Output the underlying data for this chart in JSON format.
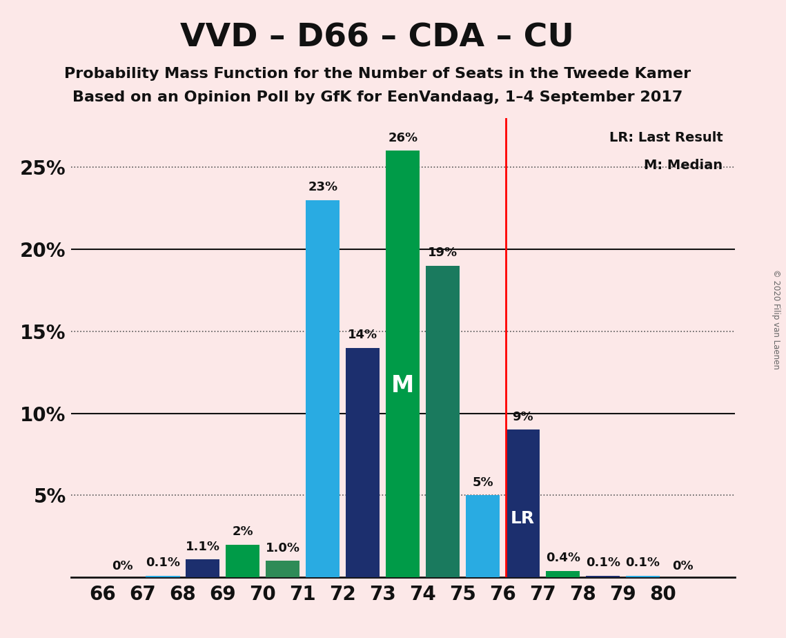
{
  "title": "VVD – D66 – CDA – CU",
  "subtitle1": "Probability Mass Function for the Number of Seats in the Tweede Kamer",
  "subtitle2": "Based on an Opinion Poll by GfK for EenVandaag, 1–4 September 2017",
  "copyright": "© 2020 Filip van Laenen",
  "background_color": "#fce8e8",
  "seats": [
    66,
    67,
    68,
    69,
    70,
    71,
    72,
    73,
    74,
    75,
    76,
    77,
    78,
    79,
    80
  ],
  "probabilities": [
    0.0,
    0.1,
    1.1,
    2.0,
    1.0,
    23.0,
    14.0,
    26.0,
    19.0,
    5.0,
    9.0,
    0.4,
    0.1,
    0.1,
    0.0
  ],
  "bar_colors": [
    "#29ABE2",
    "#29ABE2",
    "#1C2F6E",
    "#009B48",
    "#2E8B57",
    "#29ABE2",
    "#1C2F6E",
    "#009B48",
    "#1a7a5e",
    "#29ABE2",
    "#1C2F6E",
    "#009B48",
    "#1C2F6E",
    "#29ABE2",
    "#1C2F6E"
  ],
  "label_texts": [
    "0%",
    "0.1%",
    "1.1%",
    "2%",
    "1.0%",
    "23%",
    "14%",
    "26%",
    "19%",
    "5%",
    "9%",
    "0.4%",
    "0.1%",
    "0.1%",
    "0%"
  ],
  "median_seat": 73,
  "last_result_seat": 76,
  "ylim_max": 28,
  "ytick_values": [
    0,
    5,
    10,
    15,
    20,
    25
  ],
  "ytick_labels": [
    "",
    "5%",
    "10%",
    "15%",
    "20%",
    "25%"
  ],
  "dotted_yticks": [
    5,
    15,
    25
  ],
  "solid_yticks": [
    10,
    20
  ],
  "legend_lr": "LR: Last Result",
  "legend_m": "M: Median",
  "title_fontsize": 34,
  "subtitle_fontsize": 16,
  "tick_fontsize": 20,
  "bar_label_fontsize": 13,
  "inside_label_fontsize_M": 24,
  "inside_label_fontsize_LR": 18
}
